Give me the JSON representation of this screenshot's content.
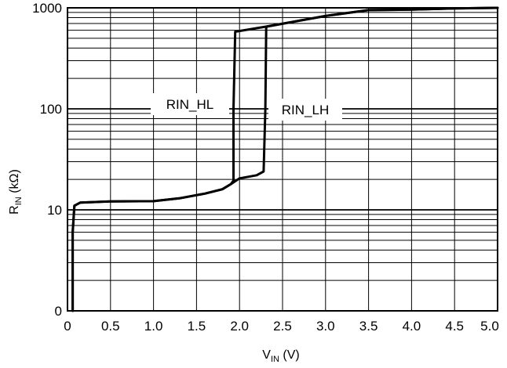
{
  "chart_data": {
    "type": "line",
    "title": "",
    "xlabel": {
      "main": "V",
      "sub": "IN",
      "unit": " (V)"
    },
    "ylabel": {
      "main": "R",
      "sub": "IN",
      "unit": " (kΩ)"
    },
    "x_ticks": [
      "0",
      "0.5",
      "1.0",
      "1.5",
      "2.0",
      "2.5",
      "3.0",
      "3.5",
      "4.0",
      "4.5",
      "5.0"
    ],
    "y_ticks": [
      "0",
      "10",
      "100",
      "1000"
    ],
    "xlim": [
      0,
      5.0
    ],
    "y_scale": "log (decade grid, zero at bottom)",
    "grid": true,
    "series": [
      {
        "name": "RIN_HL",
        "points": [
          [
            0.06,
            0.1
          ],
          [
            0.06,
            6
          ],
          [
            0.08,
            11
          ],
          [
            0.15,
            11.8
          ],
          [
            0.5,
            12.1
          ],
          [
            1.0,
            12.2
          ],
          [
            1.3,
            13
          ],
          [
            1.6,
            14.5
          ],
          [
            1.8,
            16
          ],
          [
            1.9,
            18
          ],
          [
            1.93,
            19.5
          ],
          [
            1.93,
            100
          ],
          [
            1.95,
            580
          ],
          [
            2.3,
            650
          ],
          [
            3.0,
            830
          ],
          [
            3.5,
            950
          ],
          [
            4.0,
            960
          ],
          [
            4.5,
            985
          ],
          [
            5.0,
            1000
          ]
        ]
      },
      {
        "name": "RIN_LH",
        "points": [
          [
            0.06,
            0.1
          ],
          [
            0.06,
            6
          ],
          [
            0.08,
            11
          ],
          [
            0.15,
            11.8
          ],
          [
            0.5,
            12.1
          ],
          [
            1.0,
            12.2
          ],
          [
            1.3,
            13
          ],
          [
            1.6,
            14.5
          ],
          [
            1.8,
            16
          ],
          [
            1.9,
            18
          ],
          [
            2.0,
            20.5
          ],
          [
            2.2,
            22
          ],
          [
            2.28,
            24
          ],
          [
            2.3,
            100
          ],
          [
            2.31,
            650
          ],
          [
            3.0,
            830
          ],
          [
            3.5,
            950
          ],
          [
            4.0,
            960
          ],
          [
            4.5,
            985
          ],
          [
            5.0,
            1000
          ]
        ]
      }
    ],
    "annotations": [
      "RIN_HL",
      "RIN_LH"
    ]
  }
}
